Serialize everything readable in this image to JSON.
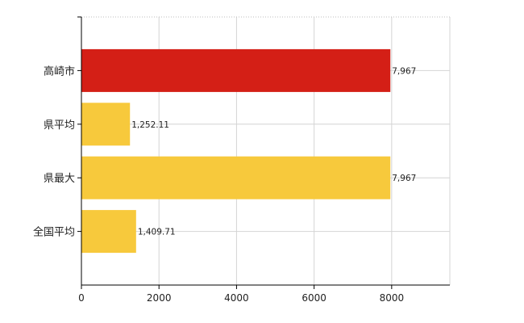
{
  "chart_data": {
    "type": "bar",
    "orientation": "horizontal",
    "categories": [
      "高崎市",
      "県平均",
      "県最大",
      "全国平均"
    ],
    "values": [
      7967,
      1252.11,
      7967,
      1409.71
    ],
    "data_labels": [
      "7,967",
      "1,252.11",
      "7,967",
      "1,409.71"
    ],
    "colors": [
      "#d41f16",
      "#f7c93c",
      "#f7c93c",
      "#f7c93c"
    ],
    "xlim": [
      0,
      9500
    ],
    "xticks": [
      0,
      2000,
      4000,
      6000,
      8000
    ],
    "xtick_labels": [
      "0",
      "2000",
      "4000",
      "6000",
      "8000"
    ],
    "grid": true,
    "title": "",
    "xlabel": "",
    "ylabel": ""
  }
}
